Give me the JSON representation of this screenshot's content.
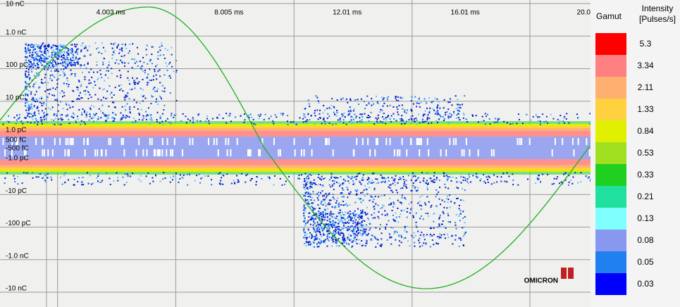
{
  "chart_data": {
    "type": "prpd",
    "xlim": [
      0,
      20.0
    ],
    "xticks": [
      {
        "value": 4.003,
        "label": "4.003 ms"
      },
      {
        "value": 8.005,
        "label": "8.005 ms"
      },
      {
        "value": 12.01,
        "label": "12.01 ms"
      },
      {
        "value": 16.01,
        "label": "16.01 ms"
      },
      {
        "value": 20.0,
        "label": "20.0"
      }
    ],
    "yscale": "symlog",
    "ylim": [
      -10000,
      10000
    ],
    "yticks": [
      {
        "value": 10000,
        "label": "10 nC"
      },
      {
        "value": 1000,
        "label": "1.0 nC"
      },
      {
        "value": 100,
        "label": "100 pC"
      },
      {
        "value": 10,
        "label": "10 pC"
      },
      {
        "value": 1,
        "label": "1.0 pC"
      },
      {
        "value": 0.5,
        "label": "500 fC"
      },
      {
        "value": -0.5,
        "label": "-500 fC"
      },
      {
        "value": -1,
        "label": "-1.0 pC"
      },
      {
        "value": -10,
        "label": "-10 pC"
      },
      {
        "value": -100,
        "label": "-100 pC"
      },
      {
        "value": -1000,
        "label": "-1.0 nC"
      },
      {
        "value": -10000,
        "label": "-10 nC"
      }
    ],
    "grid": true,
    "legend": {
      "title": "Gamut",
      "unit_title": "Intensity [Pulses/s]",
      "values": [
        5.3,
        3.34,
        2.11,
        1.33,
        0.84,
        0.53,
        0.33,
        0.21,
        0.13,
        0.08,
        0.05,
        0.03
      ],
      "colors": [
        "#ff0000",
        "#ff8080",
        "#ffb070",
        "#ffd040",
        "#e0f000",
        "#a0e020",
        "#20d020",
        "#20e0a0",
        "#80ffff",
        "#8898f0",
        "#2080f0",
        "#0000ff"
      ]
    },
    "logo": "OMICRON"
  }
}
